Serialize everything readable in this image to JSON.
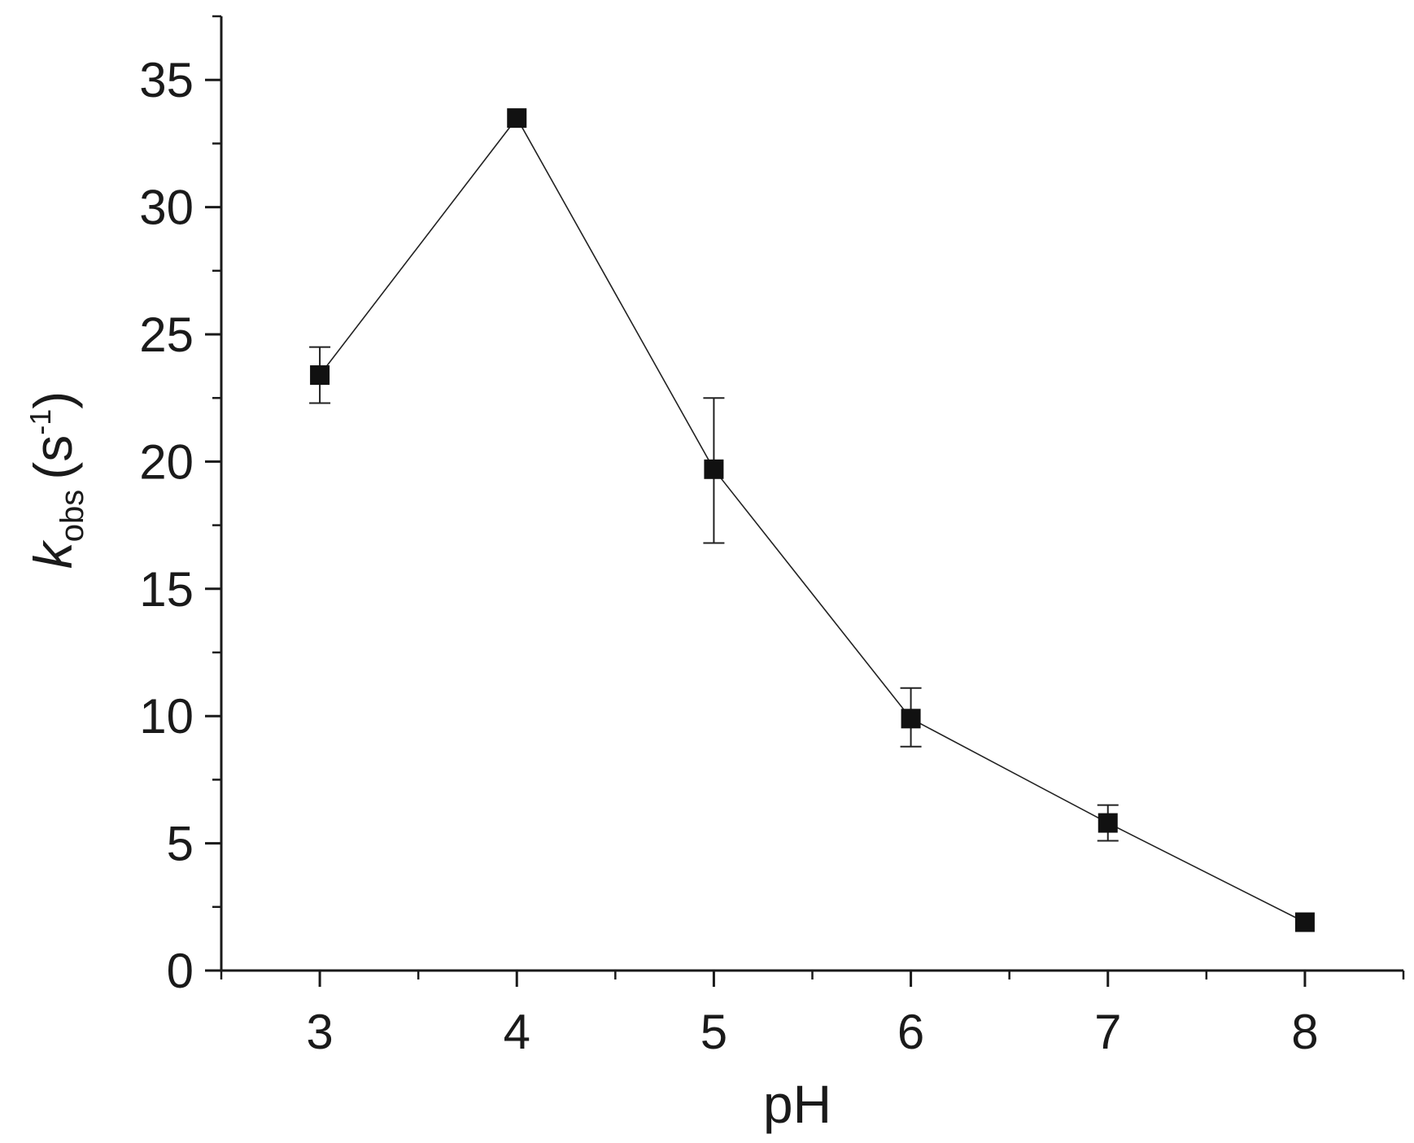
{
  "chart_data": {
    "type": "line",
    "title": "",
    "xlabel": "pH",
    "ylabel": {
      "symbol": "k",
      "subscript": "obs",
      "unit_open": "(s",
      "unit_superscript": "-1",
      "unit_close": ")"
    },
    "xlim": [
      2.5,
      8.5
    ],
    "ylim": [
      0,
      37.5
    ],
    "x_ticks": [
      3,
      4,
      5,
      6,
      7,
      8
    ],
    "x_tick_labels": [
      "3",
      "4",
      "5",
      "6",
      "7",
      "8"
    ],
    "x_minor_ticks": [
      2.5,
      3.5,
      4.5,
      5.5,
      6.5,
      7.5,
      8.5
    ],
    "y_ticks": [
      0,
      5,
      10,
      15,
      20,
      25,
      30,
      35
    ],
    "y_tick_labels": [
      "0",
      "5",
      "10",
      "15",
      "20",
      "25",
      "30",
      "35"
    ],
    "y_minor_ticks": [
      2.5,
      7.5,
      12.5,
      17.5,
      22.5,
      27.5,
      32.5,
      37.5
    ],
    "grid": false,
    "legend": "none",
    "marker": "square",
    "color": "#111111",
    "series": [
      {
        "x": [
          3,
          4,
          5,
          6,
          7,
          8
        ],
        "y": [
          23.4,
          33.5,
          19.7,
          9.9,
          5.8,
          1.9
        ],
        "y_err_upper": [
          24.5,
          33.5,
          22.5,
          11.1,
          6.5,
          1.9
        ],
        "y_err_lower": [
          22.3,
          33.5,
          16.8,
          8.8,
          5.1,
          1.9
        ]
      }
    ]
  }
}
